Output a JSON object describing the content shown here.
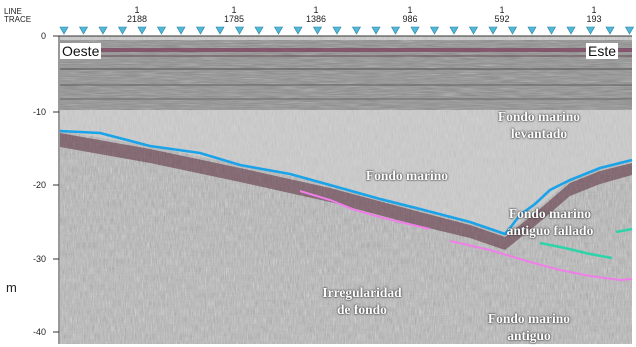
{
  "header": {
    "line_label": "LINE",
    "trace_label": "TRACE"
  },
  "trace_axis": {
    "line_numbers": [
      "1",
      "1",
      "1",
      "1",
      "1",
      "1"
    ],
    "traces": [
      "2188",
      "1785",
      "1386",
      "986",
      "592",
      "193"
    ],
    "marker_color": "#4fb9d8"
  },
  "depth_axis": {
    "unit": "m",
    "ticks": [
      "0",
      "-10",
      "-20",
      "-30",
      "-40"
    ]
  },
  "labels": {
    "west": "Oeste",
    "east": "Este",
    "raised_seafloor": [
      "Fondo marino",
      "levantado"
    ],
    "seafloor": "Fondo marino",
    "old_faulted_seafloor": [
      "Fondo marino",
      "antiguo fallado"
    ],
    "bottom_irregularity": [
      "Irregularidad",
      "de fondo"
    ],
    "old_seafloor": [
      "Fondo marino",
      "antiguo"
    ]
  },
  "colors": {
    "seafloor_line": "#1aa3e8",
    "old_seafloor_line": "#f07ee8",
    "faulted_line": "#2fd3a8",
    "reflector_dark": "#5a2a3a"
  }
}
